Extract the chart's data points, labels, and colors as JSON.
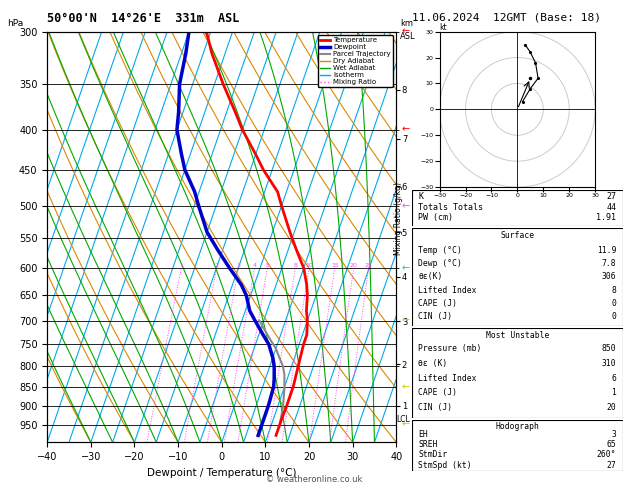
{
  "title_left": "50°00'N  14°26'E  331m  ASL",
  "title_right": "11.06.2024  12GMT (Base: 18)",
  "xlabel": "Dewpoint / Temperature (°C)",
  "ylabel_left": "hPa",
  "xlim": [
    -40,
    40
  ],
  "pmin": 300,
  "pmax": 1000,
  "pressure_ticks": [
    300,
    350,
    400,
    450,
    500,
    550,
    600,
    650,
    700,
    750,
    800,
    850,
    900,
    950
  ],
  "skew_factor": 32.5,
  "temp_profile": {
    "pressure": [
      300,
      320,
      350,
      380,
      400,
      430,
      450,
      480,
      500,
      540,
      570,
      600,
      630,
      650,
      680,
      700,
      730,
      750,
      780,
      800,
      830,
      850,
      880,
      900,
      930,
      950,
      980
    ],
    "temp": [
      -36,
      -33,
      -28,
      -23,
      -20,
      -15,
      -12,
      -7,
      -5,
      -1,
      2,
      5,
      7,
      8,
      9,
      10,
      11,
      11,
      11.3,
      11.5,
      11.8,
      12,
      12,
      12,
      11.9,
      11.9,
      11.9
    ]
  },
  "dewp_profile": {
    "pressure": [
      300,
      320,
      350,
      380,
      400,
      430,
      450,
      480,
      500,
      540,
      570,
      600,
      630,
      650,
      680,
      700,
      730,
      750,
      780,
      800,
      830,
      850,
      880,
      900,
      930,
      950,
      980
    ],
    "temp": [
      -40,
      -39,
      -38,
      -36,
      -35,
      -32,
      -30,
      -26,
      -24,
      -20,
      -16,
      -12,
      -8,
      -6,
      -4,
      -2,
      1,
      3,
      5,
      6,
      7,
      7.5,
      7.7,
      7.8,
      7.8,
      7.8,
      7.8
    ]
  },
  "parcel_profile": {
    "pressure": [
      950,
      920,
      900,
      870,
      850,
      820,
      800,
      780,
      760,
      740,
      720,
      700
    ],
    "temp": [
      11.9,
      11.5,
      11.2,
      10.5,
      10.0,
      9.0,
      8.0,
      6.5,
      5.0,
      3.0,
      1.0,
      -1.0
    ]
  },
  "colors": {
    "temperature": "#ff0000",
    "dewpoint": "#0000cc",
    "parcel": "#888888",
    "dry_adiabat": "#dd8800",
    "wet_adiabat": "#00aa00",
    "isotherm": "#00aaee",
    "mixing_ratio": "#ff44ff",
    "background": "#ffffff",
    "grid": "#000000"
  },
  "legend_entries": [
    {
      "label": "Temperature",
      "color": "#ff0000",
      "lw": 2,
      "ls": "-"
    },
    {
      "label": "Dewpoint",
      "color": "#0000cc",
      "lw": 2.5,
      "ls": "-"
    },
    {
      "label": "Parcel Trajectory",
      "color": "#888888",
      "lw": 1.5,
      "ls": "-"
    },
    {
      "label": "Dry Adiabat",
      "color": "#dd8800",
      "lw": 1,
      "ls": "-"
    },
    {
      "label": "Wet Adiabat",
      "color": "#00aa00",
      "lw": 1,
      "ls": "-"
    },
    {
      "label": "Isotherm",
      "color": "#00aaee",
      "lw": 1,
      "ls": "-"
    },
    {
      "label": "Mixing Ratio",
      "color": "#ff44ff",
      "lw": 1,
      "ls": ":"
    }
  ],
  "km_labels": [
    8,
    7,
    6,
    5,
    4,
    3,
    2,
    1
  ],
  "km_pressures": [
    356,
    411,
    472,
    540,
    616,
    701,
    795,
    899
  ],
  "lcl_pressure": 935,
  "mixing_ratios": [
    1,
    2,
    3,
    4,
    5,
    8,
    10,
    15,
    20,
    25
  ],
  "wind_barbs_side": [
    {
      "pressure": 300,
      "color": "#ff0000",
      "style": "barb_high"
    },
    {
      "pressure": 400,
      "color": "#ff0000",
      "style": "barb_high"
    },
    {
      "pressure": 500,
      "color": "#ff44ff",
      "style": "barb_mid"
    },
    {
      "pressure": 600,
      "color": "#00cccc",
      "style": "barb_mid"
    },
    {
      "pressure": 700,
      "color": "#cccc00",
      "style": "barb_low"
    },
    {
      "pressure": 850,
      "color": "#cccc00",
      "style": "barb_low"
    },
    {
      "pressure": 950,
      "color": "#cccc00",
      "style": "barb_low"
    }
  ],
  "hodo_points": [
    [
      2,
      3
    ],
    [
      5,
      8
    ],
    [
      8,
      12
    ],
    [
      7,
      18
    ],
    [
      5,
      22
    ],
    [
      3,
      25
    ]
  ],
  "hodo_storm": [
    5,
    12
  ],
  "stats1": [
    [
      "K",
      "27"
    ],
    [
      "Totals Totals",
      "44"
    ],
    [
      "PW (cm)",
      "1.91"
    ]
  ],
  "surface_title": "Surface",
  "surface": [
    [
      "Temp (°C)",
      "11.9"
    ],
    [
      "Dewp (°C)",
      "7.8"
    ],
    [
      "θε(K)",
      "306"
    ],
    [
      "Lifted Index",
      "8"
    ],
    [
      "CAPE (J)",
      "0"
    ],
    [
      "CIN (J)",
      "0"
    ]
  ],
  "mu_title": "Most Unstable",
  "most_unstable": [
    [
      "Pressure (mb)",
      "850"
    ],
    [
      "θε (K)",
      "310"
    ],
    [
      "Lifted Index",
      "6"
    ],
    [
      "CAPE (J)",
      "1"
    ],
    [
      "CIN (J)",
      "20"
    ]
  ],
  "hodo_title": "Hodograph",
  "hodograph": [
    [
      "EH",
      "3"
    ],
    [
      "SREH",
      "65"
    ],
    [
      "StmDir",
      "260°"
    ],
    [
      "StmSpd (kt)",
      "27"
    ]
  ],
  "copyright": "© weatheronline.co.uk"
}
